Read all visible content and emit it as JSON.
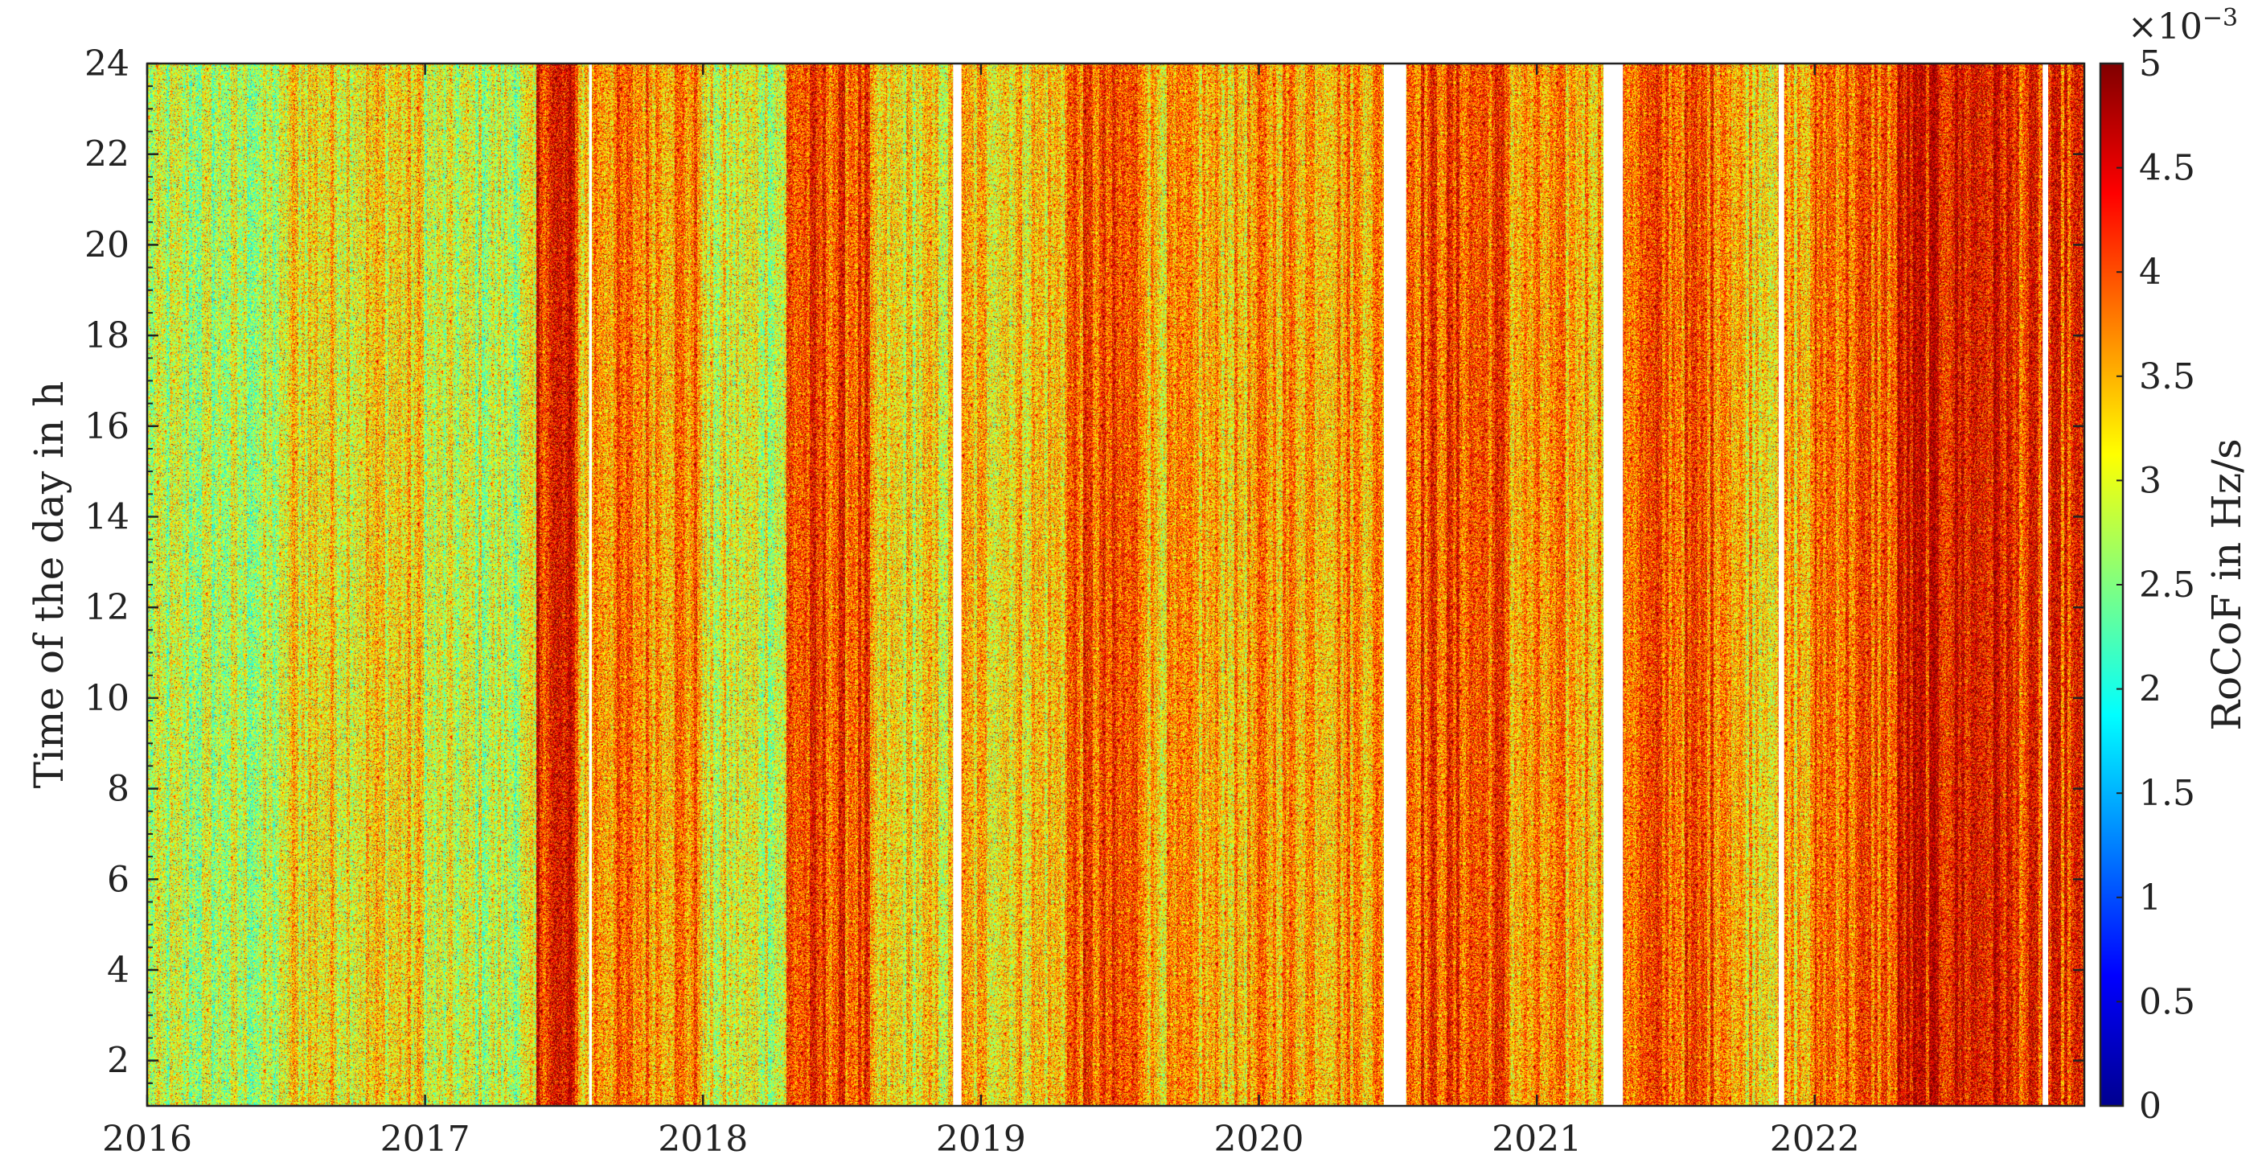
{
  "chart_data": {
    "type": "heatmap",
    "title": "",
    "xlabel": "",
    "ylabel": "Time of the day in h",
    "colorbar_label": "RoCoF in Hz/s",
    "colorbar_exponent_label": "×10",
    "colorbar_exponent_power": "−3",
    "x_ticks": [
      "2016",
      "2017",
      "2018",
      "2019",
      "2020",
      "2021",
      "2022"
    ],
    "xlim": [
      2016.0,
      2022.97
    ],
    "y_ticks": [
      2,
      4,
      6,
      8,
      10,
      12,
      14,
      16,
      18,
      20,
      22,
      24
    ],
    "ylim": [
      1,
      24
    ],
    "color_ticks": [
      "0",
      "0.5",
      "1",
      "1.5",
      "2",
      "2.5",
      "3",
      "3.5",
      "4",
      "4.5",
      "5"
    ],
    "color_range": [
      0,
      5
    ],
    "colormap": "jet",
    "colormap_stops": [
      "#00008f",
      "#0000ff",
      "#0080ff",
      "#00ffff",
      "#80ff80",
      "#ffff00",
      "#ff8000",
      "#ff0000",
      "#800000"
    ],
    "grid": false,
    "data_gaps": [
      {
        "from": 2017.59,
        "to": 2017.6
      },
      {
        "from": 2018.9,
        "to": 2018.93
      },
      {
        "from": 2020.45,
        "to": 2020.53
      },
      {
        "from": 2021.24,
        "to": 2021.31
      },
      {
        "from": 2021.87,
        "to": 2021.89
      },
      {
        "from": 2022.82,
        "to": 2022.84
      }
    ],
    "period_mean_rocof": [
      {
        "from": 2016.0,
        "to": 2016.5,
        "value": 2.7
      },
      {
        "from": 2016.5,
        "to": 2017.0,
        "value": 3.2
      },
      {
        "from": 2017.0,
        "to": 2017.4,
        "value": 2.8
      },
      {
        "from": 2017.4,
        "to": 2017.55,
        "value": 4.3
      },
      {
        "from": 2017.6,
        "to": 2018.0,
        "value": 3.7
      },
      {
        "from": 2018.0,
        "to": 2018.3,
        "value": 2.9
      },
      {
        "from": 2018.3,
        "to": 2018.6,
        "value": 4.0
      },
      {
        "from": 2018.6,
        "to": 2018.9,
        "value": 3.1
      },
      {
        "from": 2018.93,
        "to": 2019.3,
        "value": 3.3
      },
      {
        "from": 2019.3,
        "to": 2019.6,
        "value": 3.9
      },
      {
        "from": 2019.6,
        "to": 2020.0,
        "value": 3.4
      },
      {
        "from": 2020.0,
        "to": 2020.45,
        "value": 3.6
      },
      {
        "from": 2020.53,
        "to": 2020.9,
        "value": 4.0
      },
      {
        "from": 2020.9,
        "to": 2021.24,
        "value": 3.5
      },
      {
        "from": 2021.31,
        "to": 2021.7,
        "value": 3.9
      },
      {
        "from": 2021.7,
        "to": 2022.0,
        "value": 3.4
      },
      {
        "from": 2022.0,
        "to": 2022.3,
        "value": 3.9
      },
      {
        "from": 2022.3,
        "to": 2022.7,
        "value": 4.4
      },
      {
        "from": 2022.7,
        "to": 2022.97,
        "value": 4.1
      }
    ]
  }
}
